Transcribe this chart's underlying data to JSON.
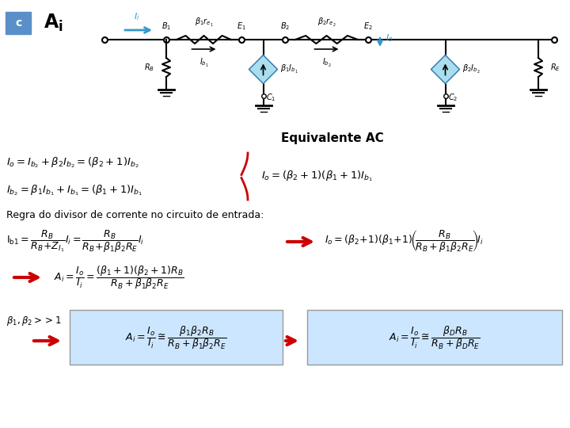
{
  "title": "Equivalente AC",
  "background": "#ffffff",
  "box_color": "#cce6ff",
  "arrow_color": "#cc0000",
  "cyan_color": "#3399cc",
  "label_c_bg": "#5b8fc9",
  "fig_w": 7.2,
  "fig_h": 5.4,
  "dpi": 100
}
